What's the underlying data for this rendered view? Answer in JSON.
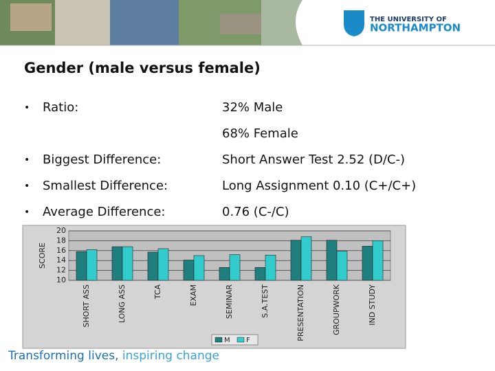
{
  "header": {
    "logo_line1": "THE UNIVERSITY OF",
    "logo_line2": "NORTHAMPTON"
  },
  "title": "Gender (male versus female)",
  "rows": [
    {
      "label": "Ratio:",
      "values": [
        "32% Male",
        "68% Female"
      ]
    },
    {
      "label": "Biggest Difference:",
      "values": [
        "Short Answer Test 2.52 (D/C-)"
      ]
    },
    {
      "label": "Smallest Difference:",
      "values": [
        "Long Assignment 0.10 (C+/C+)"
      ]
    },
    {
      "label": "Average Difference:",
      "values": [
        "0.76 (C-/C)"
      ]
    }
  ],
  "chart_data": {
    "type": "bar",
    "y_label": "SCORE",
    "categories": [
      "SHORT ASS",
      "LONG ASS",
      "TCA",
      "EXAM",
      "SEMINAR",
      "S.A.TEST",
      "PRESENTATION",
      "GROUPWORK",
      "IND STUDY"
    ],
    "series": [
      {
        "name": "M",
        "color": "#1f7f7f",
        "values": [
          15.8,
          16.8,
          15.7,
          14.1,
          12.6,
          12.6,
          18.1,
          18.1,
          16.9
        ]
      },
      {
        "name": "F",
        "color": "#33cccc",
        "values": [
          16.2,
          16.8,
          16.4,
          15.0,
          15.2,
          15.1,
          18.8,
          15.9,
          18.0
        ]
      }
    ],
    "ylim": [
      10,
      20
    ],
    "yticks": [
      10,
      12,
      14,
      16,
      18,
      20
    ],
    "grid": true
  },
  "footer": {
    "part1": "Transforming lives,",
    "part2": "inspiring change"
  }
}
